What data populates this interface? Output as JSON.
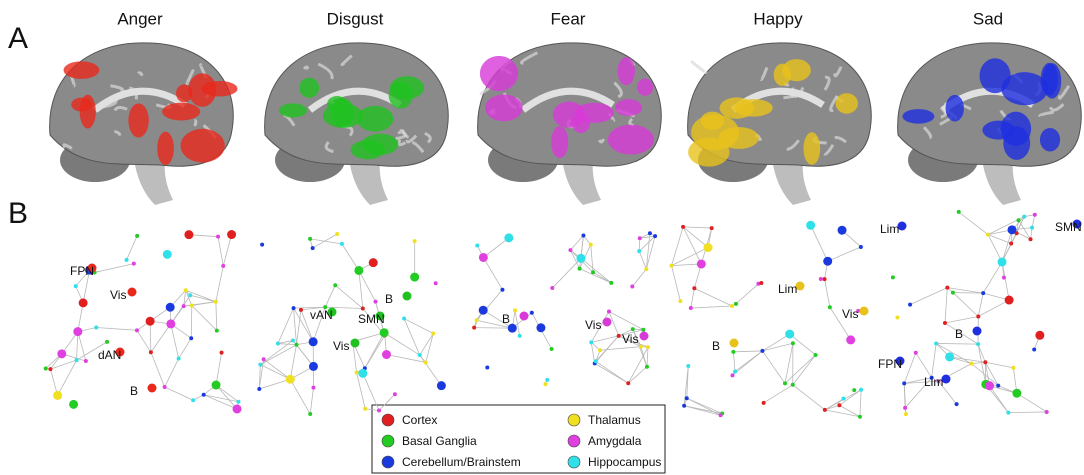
{
  "panel_labels": [
    "A",
    "B"
  ],
  "emotions": [
    {
      "name": "Anger",
      "color": "#e8281c",
      "labels": [
        "FPN",
        "Vis",
        "dAN",
        "B"
      ]
    },
    {
      "name": "Disgust",
      "color": "#1fc21f",
      "labels": [
        "vAN",
        "SMN",
        "B",
        "Vis"
      ]
    },
    {
      "name": "Fear",
      "color": "#d83ad8",
      "labels": [
        "B",
        "Vis",
        "Vis"
      ]
    },
    {
      "name": "Happy",
      "color": "#e8c21a",
      "labels": [
        "Lim",
        "Vis",
        "B"
      ]
    },
    {
      "name": "Sad",
      "color": "#1e2ee0",
      "labels": [
        "Lim",
        "SMN",
        "B",
        "FPN",
        "Lim"
      ]
    }
  ],
  "legend": [
    {
      "label": "Cortex",
      "color": "#e02020"
    },
    {
      "label": "Basal Ganglia",
      "color": "#22cc22"
    },
    {
      "label": "Cerebellum/Brainstem",
      "color": "#1a3ae0"
    },
    {
      "label": "Thalamus",
      "color": "#f0e020"
    },
    {
      "label": "Amygdala",
      "color": "#e040e0"
    },
    {
      "label": "Hippocampus",
      "color": "#30e0e8"
    }
  ]
}
